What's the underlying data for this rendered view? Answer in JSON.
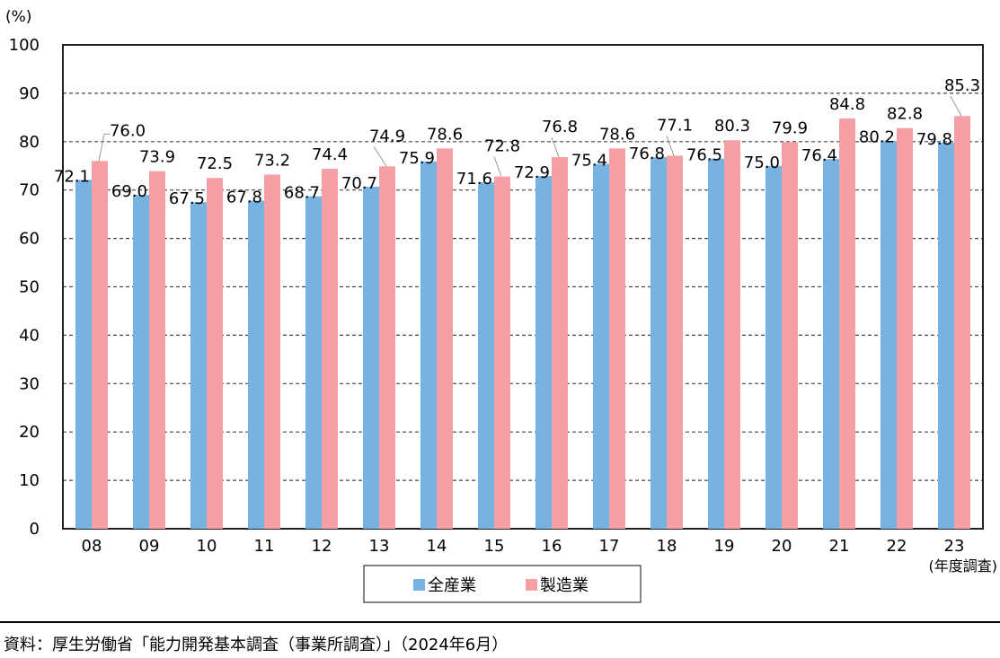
{
  "chart_data": {
    "type": "bar",
    "title": "",
    "ylabel": "(%)",
    "xlabel": "(年度調査)",
    "ylim": [
      0,
      100
    ],
    "yticks": [
      0,
      10,
      20,
      30,
      40,
      50,
      60,
      70,
      80,
      90,
      100
    ],
    "grid": "dashed horizontal",
    "legend_position": "bottom",
    "categories": [
      "08",
      "09",
      "10",
      "11",
      "12",
      "13",
      "14",
      "15",
      "16",
      "17",
      "18",
      "19",
      "20",
      "21",
      "22",
      "23"
    ],
    "series": [
      {
        "name": "全産業",
        "color": "#78B2E0",
        "values": [
          72.1,
          69.0,
          67.5,
          67.8,
          68.7,
          70.7,
          75.9,
          71.6,
          72.9,
          75.4,
          76.8,
          76.5,
          75.0,
          76.4,
          80.2,
          79.8
        ]
      },
      {
        "name": "製造業",
        "color": "#F5A0A5",
        "values": [
          76.0,
          73.9,
          72.5,
          73.2,
          74.4,
          74.9,
          78.6,
          72.8,
          76.8,
          78.6,
          77.1,
          80.3,
          79.9,
          84.8,
          82.8,
          85.3
        ]
      }
    ]
  },
  "source": "資料：厚生労働省「能力開発基本調査（事業所調査）」（2024年6月）"
}
